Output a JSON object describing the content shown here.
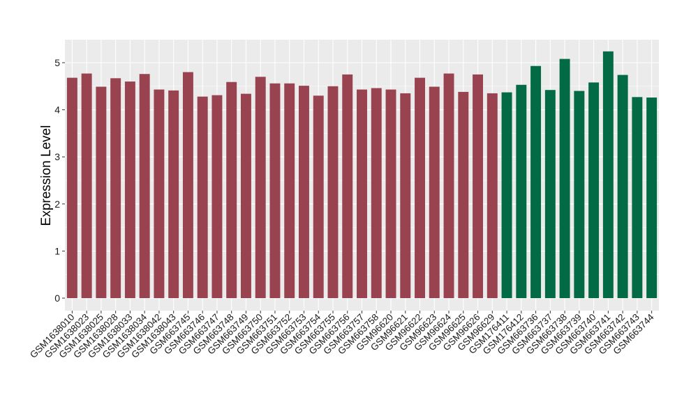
{
  "chart_data": {
    "type": "bar",
    "title": "",
    "xlabel": "",
    "ylabel": "Expression Level",
    "ylim": [
      0,
      5.48
    ],
    "yticks": [
      "0",
      "1",
      "2",
      "3",
      "4",
      "5"
    ],
    "grid": true,
    "legend": "none",
    "categories": [
      "GSM1638010",
      "GSM1638023",
      "GSM1638025",
      "GSM1638028",
      "GSM1638033",
      "GSM1638034",
      "GSM1638042",
      "GSM1638043",
      "GSM663745",
      "GSM663746",
      "GSM663747",
      "GSM663748",
      "GSM663749",
      "GSM663750",
      "GSM663751",
      "GSM663752",
      "GSM663753",
      "GSM663754",
      "GSM663755",
      "GSM663756",
      "GSM663757",
      "GSM663758",
      "GSM96620",
      "GSM96621",
      "GSM96622",
      "GSM96623",
      "GSM96624",
      "GSM96625",
      "GSM96626",
      "GSM96629",
      "GSM176411",
      "GSM176412",
      "GSM663736",
      "GSM663737",
      "GSM663738",
      "GSM663739",
      "GSM663740",
      "GSM663741",
      "GSM663742",
      "GSM663743",
      "GSM663744"
    ],
    "values": [
      4.68,
      4.77,
      4.49,
      4.67,
      4.6,
      4.76,
      4.43,
      4.41,
      4.8,
      4.28,
      4.31,
      4.59,
      4.34,
      4.7,
      4.56,
      4.56,
      4.51,
      4.3,
      4.5,
      4.75,
      4.43,
      4.46,
      4.43,
      4.35,
      4.68,
      4.49,
      4.77,
      4.38,
      4.75,
      4.35,
      4.37,
      4.53,
      4.93,
      4.42,
      5.08,
      4.4,
      4.58,
      5.24,
      4.74,
      4.27,
      4.26
    ],
    "groups": [
      "a",
      "a",
      "a",
      "a",
      "a",
      "a",
      "a",
      "a",
      "a",
      "a",
      "a",
      "a",
      "a",
      "a",
      "a",
      "a",
      "a",
      "a",
      "a",
      "a",
      "a",
      "a",
      "a",
      "a",
      "a",
      "a",
      "a",
      "a",
      "a",
      "a",
      "b",
      "b",
      "b",
      "b",
      "b",
      "b",
      "b",
      "b",
      "b",
      "b",
      "b"
    ],
    "colors": {
      "a": "#9a4350",
      "b": "#026b45"
    },
    "panel_background": "#ebebeb",
    "gridline_color": "#ffffff"
  }
}
